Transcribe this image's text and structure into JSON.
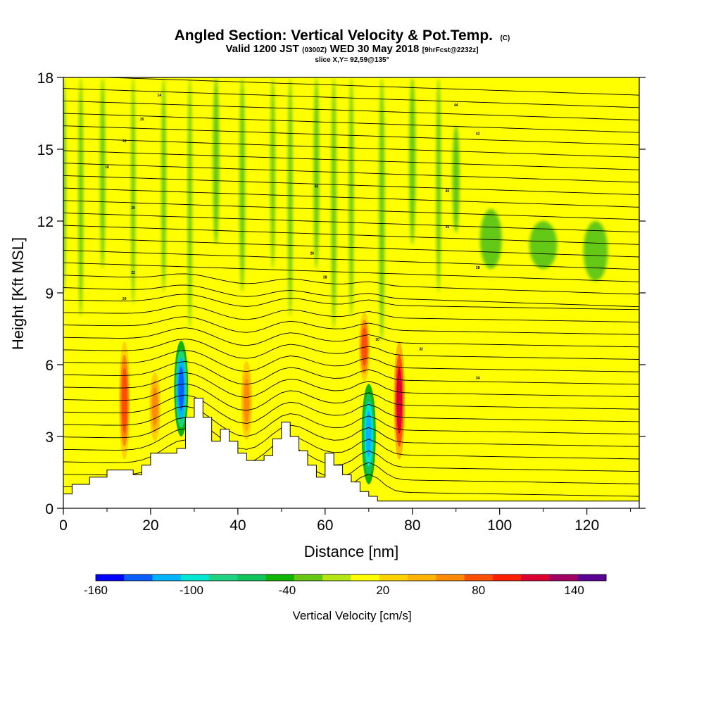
{
  "header": {
    "title": "Angled Section: Vertical Velocity & Pot.Temp.",
    "title_unit": "(C)",
    "valid_prefix": "Valid 1200 JST",
    "valid_utc": "(0300Z)",
    "valid_date": "WED 30 May 2018",
    "forecast": "[9hrFcst@2232z]",
    "slice": "slice X,Y= 92,59@135°"
  },
  "chart_data": {
    "type": "heatmap",
    "title": "Angled Section: Vertical Velocity & Pot.Temp.",
    "xlabel": "Distance [nm]",
    "ylabel": "Height [Kft MSL]",
    "xlim": [
      0,
      132
    ],
    "ylim": [
      0,
      18
    ],
    "x_ticks": [
      0,
      20,
      40,
      60,
      80,
      100,
      120
    ],
    "y_ticks": [
      0,
      3,
      6,
      9,
      12,
      15,
      18
    ],
    "x_tick_labels": [
      "0",
      "20",
      "40",
      "60",
      "80",
      "100",
      "120"
    ],
    "y_tick_labels": [
      "0",
      "3",
      "6",
      "9",
      "12",
      "15",
      "18"
    ],
    "colorbar": {
      "label": "Vertical Velocity [cm/s]",
      "range": [
        -160,
        160
      ],
      "step": 20,
      "tick_values": [
        -160,
        -100,
        -40,
        20,
        80,
        140
      ],
      "tick_labels": [
        "-160",
        "-100",
        "-40",
        "20",
        "80",
        "140"
      ],
      "colors": [
        "#0000ff",
        "#0a5eff",
        "#00b4ff",
        "#00e6d2",
        "#1ed282",
        "#10c45a",
        "#10b400",
        "#64c814",
        "#b4e614",
        "#ffff00",
        "#ffd200",
        "#ffb400",
        "#ff8c00",
        "#ff5000",
        "#ff1e00",
        "#dc0032",
        "#a00064",
        "#5a0096"
      ]
    },
    "terrain_profile": {
      "x": [
        0,
        2,
        6,
        10,
        16,
        18,
        20,
        22,
        26,
        28,
        30,
        32,
        34,
        36,
        38,
        40,
        42,
        44,
        46,
        48,
        50,
        52,
        54,
        56,
        58,
        60,
        62,
        64,
        66,
        68,
        70,
        72,
        132
      ],
      "y": [
        0.6,
        1.0,
        1.3,
        1.6,
        1.4,
        1.8,
        2.3,
        2.3,
        2.5,
        3.8,
        4.6,
        3.8,
        2.8,
        3.3,
        2.8,
        2.3,
        2.0,
        2.0,
        2.2,
        2.9,
        3.6,
        3.0,
        2.4,
        1.8,
        1.3,
        2.3,
        1.8,
        1.4,
        1.1,
        0.7,
        0.5,
        0.3,
        0.3
      ]
    },
    "theta_contour_labels": [
      "14",
      "15",
      "16",
      "18",
      "20",
      "22",
      "24",
      "26",
      "28",
      "30",
      "32",
      "34",
      "36",
      "38",
      "40",
      "42",
      "44",
      "46"
    ],
    "features": [
      {
        "x": 14,
        "y_bottom": 1.5,
        "y_top": 7.5,
        "w_cm_s": 110
      },
      {
        "x": 21,
        "y_bottom": 2.5,
        "y_top": 6.0,
        "w_cm_s": 90
      },
      {
        "x": 27,
        "y_bottom": 3.0,
        "y_top": 7.0,
        "w_cm_s": -140
      },
      {
        "x": 42,
        "y_bottom": 2.5,
        "y_top": 6.5,
        "w_cm_s": 85
      },
      {
        "x": 69,
        "y_bottom": 5.0,
        "y_top": 8.5,
        "w_cm_s": 110
      },
      {
        "x": 70,
        "y_bottom": 1.0,
        "y_top": 5.2,
        "w_cm_s": -110
      },
      {
        "x": 77,
        "y_bottom": 1.5,
        "y_top": 7.5,
        "w_cm_s": 150
      }
    ]
  }
}
